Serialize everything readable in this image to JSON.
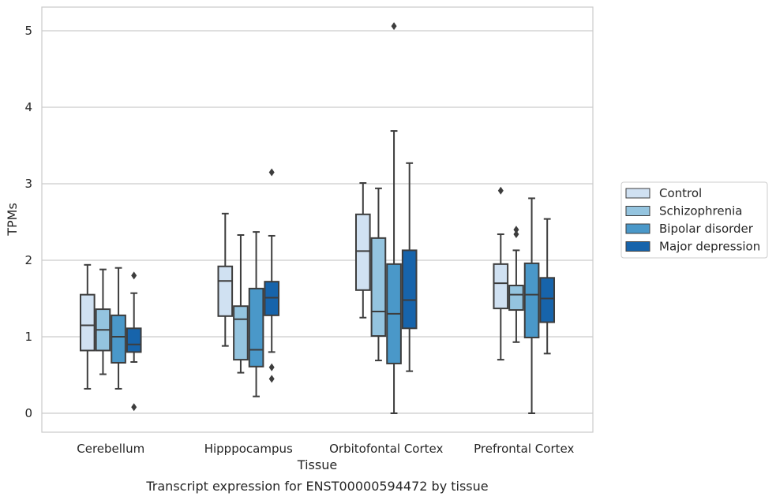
{
  "caption": "Transcript expression for ENST00000594472 by tissue",
  "chart_data": {
    "type": "box",
    "xlabel": "Tissue",
    "ylabel": "TPMs",
    "ylim": [
      -0.25,
      5.3
    ],
    "yticks": [
      0,
      1,
      2,
      3,
      4,
      5
    ],
    "grid": "horizontal",
    "legend_position": "right",
    "categories": [
      "Cerebellum",
      "Hipppocampus",
      "Orbitofontal Cortex",
      "Prefrontal Cortex"
    ],
    "series": [
      {
        "name": "Control",
        "color": "#d0e1f2",
        "boxes": [
          {
            "whislo": 0.32,
            "q1": 0.82,
            "med": 1.15,
            "q3": 1.55,
            "whishi": 1.94,
            "fliers": []
          },
          {
            "whislo": 0.88,
            "q1": 1.27,
            "med": 1.73,
            "q3": 1.92,
            "whishi": 2.61,
            "fliers": []
          },
          {
            "whislo": 1.25,
            "q1": 1.61,
            "med": 2.12,
            "q3": 2.6,
            "whishi": 3.01,
            "fliers": []
          },
          {
            "whislo": 0.7,
            "q1": 1.37,
            "med": 1.7,
            "q3": 1.95,
            "whishi": 2.34,
            "fliers": [
              2.91
            ]
          }
        ]
      },
      {
        "name": "Schizophrenia",
        "color": "#94c4df",
        "boxes": [
          {
            "whislo": 0.51,
            "q1": 0.82,
            "med": 1.09,
            "q3": 1.36,
            "whishi": 1.88,
            "fliers": []
          },
          {
            "whislo": 0.53,
            "q1": 0.7,
            "med": 1.23,
            "q3": 1.4,
            "whishi": 2.33,
            "fliers": []
          },
          {
            "whislo": 0.69,
            "q1": 1.01,
            "med": 1.33,
            "q3": 2.29,
            "whishi": 2.94,
            "fliers": []
          },
          {
            "whislo": 0.93,
            "q1": 1.35,
            "med": 1.55,
            "q3": 1.67,
            "whishi": 2.13,
            "fliers": [
              2.34,
              2.4
            ]
          }
        ]
      },
      {
        "name": "Bipolar disorder",
        "color": "#4a98c9",
        "boxes": [
          {
            "whislo": 0.32,
            "q1": 0.66,
            "med": 1.0,
            "q3": 1.28,
            "whishi": 1.9,
            "fliers": []
          },
          {
            "whislo": 0.22,
            "q1": 0.61,
            "med": 0.83,
            "q3": 1.63,
            "whishi": 2.37,
            "fliers": []
          },
          {
            "whislo": 0.0,
            "q1": 0.65,
            "med": 1.3,
            "q3": 1.95,
            "whishi": 3.69,
            "fliers": [
              5.06
            ]
          },
          {
            "whislo": 0.0,
            "q1": 0.99,
            "med": 1.55,
            "q3": 1.96,
            "whishi": 2.81,
            "fliers": []
          }
        ]
      },
      {
        "name": "Major depression",
        "color": "#1764ab",
        "boxes": [
          {
            "whislo": 0.67,
            "q1": 0.8,
            "med": 0.9,
            "q3": 1.11,
            "whishi": 1.57,
            "fliers": [
              1.8,
              0.08
            ]
          },
          {
            "whislo": 0.8,
            "q1": 1.28,
            "med": 1.51,
            "q3": 1.72,
            "whishi": 2.32,
            "fliers": [
              3.15,
              0.6,
              0.45
            ]
          },
          {
            "whislo": 0.55,
            "q1": 1.11,
            "med": 1.48,
            "q3": 2.13,
            "whishi": 3.27,
            "fliers": []
          },
          {
            "whislo": 0.78,
            "q1": 1.19,
            "med": 1.5,
            "q3": 1.77,
            "whishi": 2.54,
            "fliers": []
          }
        ]
      }
    ]
  }
}
